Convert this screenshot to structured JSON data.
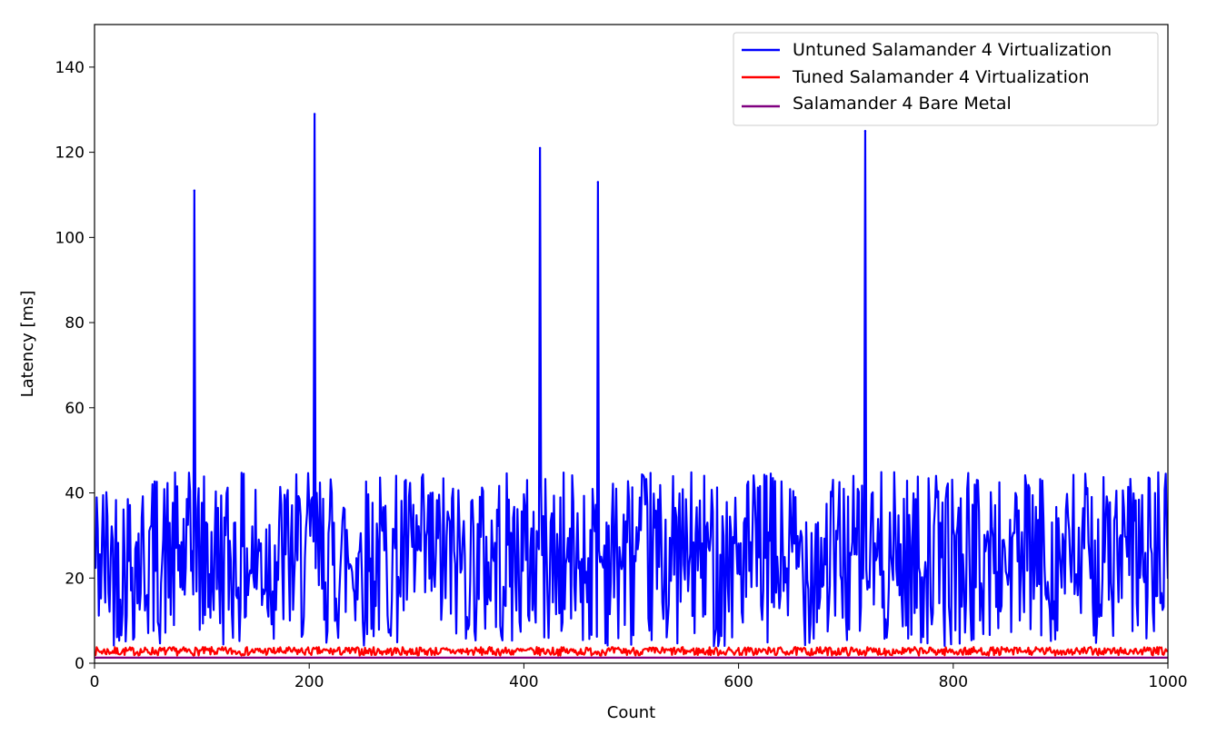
{
  "chart_data": {
    "type": "line",
    "title": "",
    "xlabel": "Count",
    "ylabel": "Latency [ms]",
    "xlim": [
      0,
      1000
    ],
    "ylim": [
      0,
      150
    ],
    "xticks": [
      0,
      200,
      400,
      600,
      800,
      1000
    ],
    "yticks": [
      0,
      20,
      40,
      60,
      80,
      100,
      120,
      140
    ],
    "grid": false,
    "legend_position": "top-right",
    "series": [
      {
        "name": "Untuned Salamander 4 Virtualization",
        "color": "#0000ff",
        "baseline_range": [
          4,
          45
        ],
        "spikes": [
          {
            "x": 93,
            "y": 111
          },
          {
            "x": 205,
            "y": 129
          },
          {
            "x": 415,
            "y": 121
          },
          {
            "x": 469,
            "y": 113
          },
          {
            "x": 718,
            "y": 125
          }
        ]
      },
      {
        "name": "Tuned Salamander 4 Virtualization",
        "color": "#ff0000",
        "baseline_range": [
          1.8,
          3.8
        ]
      },
      {
        "name": "Salamander 4 Bare Metal",
        "color": "#800080",
        "value": 1.3
      }
    ]
  }
}
